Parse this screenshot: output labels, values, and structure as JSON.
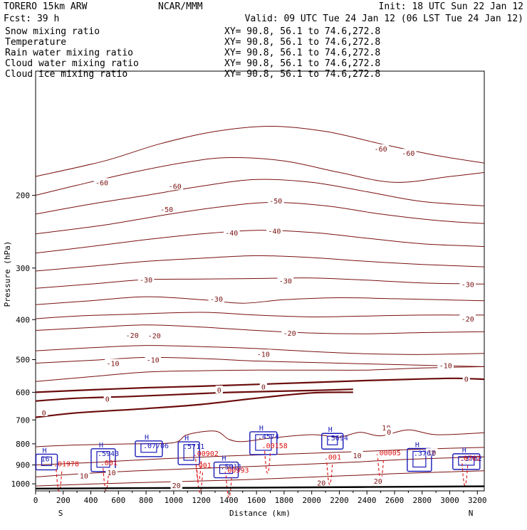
{
  "header": {
    "model": "TORERO  15km ARW",
    "org": "NCAR/MMM",
    "init": "Init: 18 UTC Sun 22 Jan 12",
    "fcst": "Fcst:   39 h",
    "valid": "Valid: 09 UTC Tue 24 Jan 12 (06 LST Tue 24 Jan 12)"
  },
  "fields": [
    {
      "label": "Snow mixing ratio",
      "xy": "XY=  90.8, 56.1 to  74.6,272.8",
      "color": "#000000"
    },
    {
      "label": "Temperature",
      "xy": "XY=  90.8, 56.1 to  74.6,272.8",
      "color": "#cc0000"
    },
    {
      "label": "Rain water mixing ratio",
      "xy": "XY=  90.8, 56.1 to  74.6,272.8",
      "color": "#cc0000"
    },
    {
      "label": "Cloud water mixing ratio",
      "xy": "XY=  90.8, 56.1 to  74.6,272.8",
      "color": "#1a1aa8"
    },
    {
      "label": "Cloud ice mixing ratio",
      "xy": "XY=  90.8, 56.1 to  74.6,272.8",
      "color": "#000000"
    }
  ],
  "colors": {
    "temperature": "#7a1010",
    "zero_isotherm": "#6b0c0c",
    "cloud_water": "#1a1ab8",
    "rain_water": "#dd1010",
    "text": "#000000",
    "terrain": "#000000"
  },
  "chart_data": {
    "type": "cross-section",
    "xlabel": "Distance (km)",
    "ylabel": "Pressure (hPa)",
    "xlim": [
      0,
      3250
    ],
    "ylim": [
      1040,
      100
    ],
    "y_scale": "log",
    "x_ticks": [
      0,
      200,
      400,
      600,
      800,
      1000,
      1200,
      1400,
      1600,
      1800,
      2000,
      2200,
      2400,
      2600,
      2800,
      3000,
      3200
    ],
    "y_ticks": [
      200,
      300,
      400,
      500,
      600,
      700,
      800,
      900,
      1000
    ],
    "endpoints": {
      "left": "S",
      "right": "N"
    },
    "isotherms": [
      {
        "value": -60,
        "points": [
          [
            0,
            200
          ],
          [
            300,
            189
          ],
          [
            700,
            176
          ],
          [
            1100,
            166
          ],
          [
            1400,
            162
          ],
          [
            1800,
            165
          ],
          [
            2200,
            176
          ],
          [
            2600,
            186
          ],
          [
            3000,
            180
          ],
          [
            3250,
            176
          ]
        ]
      },
      {
        "value": -60,
        "points": [
          [
            0,
            180
          ],
          [
            500,
            165
          ],
          [
            900,
            150
          ],
          [
            1300,
            140
          ],
          [
            1700,
            136
          ],
          [
            2100,
            140
          ],
          [
            2500,
            150
          ],
          [
            2900,
            160
          ],
          [
            3250,
            167
          ]
        ]
      },
      {
        "value": -50,
        "points": [
          [
            0,
            222
          ],
          [
            400,
            210
          ],
          [
            800,
            200
          ],
          [
            1200,
            190
          ],
          [
            1600,
            183
          ],
          [
            2000,
            186
          ],
          [
            2400,
            196
          ],
          [
            2800,
            207
          ],
          [
            3250,
            212
          ]
        ]
      },
      {
        "value": -50,
        "points": [
          [
            0,
            248
          ],
          [
            500,
            236
          ],
          [
            900,
            224
          ],
          [
            1300,
            214
          ],
          [
            1700,
            208
          ],
          [
            2100,
            212
          ],
          [
            2500,
            222
          ],
          [
            2900,
            230
          ],
          [
            3250,
            234
          ]
        ]
      },
      {
        "value": -40,
        "points": [
          [
            0,
            276
          ],
          [
            400,
            266
          ],
          [
            800,
            256
          ],
          [
            1200,
            248
          ],
          [
            1600,
            243
          ],
          [
            2000,
            246
          ],
          [
            2400,
            254
          ],
          [
            2800,
            262
          ],
          [
            3250,
            266
          ]
        ]
      },
      {
        "value": -40,
        "points": [
          [
            0,
            305
          ],
          [
            400,
            297
          ],
          [
            800,
            289
          ],
          [
            1200,
            284
          ],
          [
            1600,
            280
          ],
          [
            2000,
            283
          ],
          [
            2400,
            289
          ],
          [
            2800,
            294
          ],
          [
            3250,
            298
          ]
        ]
      },
      {
        "value": -30,
        "points": [
          [
            0,
            336
          ],
          [
            400,
            328
          ],
          [
            800,
            320
          ],
          [
            1200,
            319
          ],
          [
            1600,
            318
          ],
          [
            2000,
            317
          ],
          [
            2400,
            321
          ],
          [
            2800,
            326
          ],
          [
            3250,
            328
          ]
        ]
      },
      {
        "value": -30,
        "points": [
          [
            0,
            368
          ],
          [
            400,
            360
          ],
          [
            800,
            352
          ],
          [
            1200,
            358
          ],
          [
            1500,
            365
          ],
          [
            1800,
            358
          ],
          [
            2200,
            354
          ],
          [
            2600,
            356
          ],
          [
            3250,
            360
          ]
        ]
      },
      {
        "value": -20,
        "points": [
          [
            0,
            398
          ],
          [
            300,
            392
          ],
          [
            700,
            388
          ],
          [
            1200,
            384
          ],
          [
            1600,
            390
          ],
          [
            2000,
            394
          ],
          [
            2400,
            392
          ],
          [
            2800,
            390
          ],
          [
            3250,
            390
          ]
        ]
      },
      {
        "value": -20,
        "points": [
          [
            0,
            425
          ],
          [
            400,
            418
          ],
          [
            800,
            412
          ],
          [
            1200,
            417
          ],
          [
            1600,
            425
          ],
          [
            2000,
            431
          ],
          [
            2400,
            433
          ],
          [
            2800,
            430
          ],
          [
            3250,
            428
          ]
        ]
      },
      {
        "value": -10,
        "points": [
          [
            0,
            476
          ],
          [
            400,
            468
          ],
          [
            800,
            462
          ],
          [
            1200,
            465
          ],
          [
            1600,
            470
          ],
          [
            2000,
            478
          ],
          [
            2400,
            484
          ],
          [
            2800,
            486
          ],
          [
            3250,
            483
          ]
        ]
      },
      {
        "value": -10,
        "points": [
          [
            0,
            510
          ],
          [
            400,
            502
          ],
          [
            800,
            494
          ],
          [
            1200,
            497
          ],
          [
            1600,
            504
          ],
          [
            2000,
            508
          ],
          [
            2400,
            512
          ],
          [
            2800,
            516
          ],
          [
            3250,
            520
          ]
        ]
      },
      {
        "value": -10,
        "points": [
          [
            0,
            565
          ],
          [
            400,
            550
          ],
          [
            800,
            536
          ],
          [
            1200,
            532
          ],
          [
            1600,
            530
          ],
          [
            2000,
            530
          ],
          [
            2400,
            530
          ],
          [
            2800,
            524
          ],
          [
            3250,
            520
          ]
        ]
      },
      {
        "value": 0,
        "points": [
          [
            0,
            600
          ],
          [
            400,
            592
          ],
          [
            800,
            585
          ],
          [
            1200,
            580
          ],
          [
            1600,
            574
          ],
          [
            2000,
            568
          ],
          [
            2400,
            562
          ],
          [
            2800,
            557
          ],
          [
            3050,
            555
          ],
          [
            3250,
            558
          ]
        ]
      },
      {
        "value": 0,
        "points": [
          [
            0,
            630
          ],
          [
            300,
            620
          ],
          [
            700,
            614
          ],
          [
            1000,
            608
          ],
          [
            1300,
            602
          ],
          [
            1600,
            598
          ],
          [
            2000,
            594
          ],
          [
            2300,
            590
          ]
        ]
      },
      {
        "value": 0,
        "points": [
          [
            0,
            690
          ],
          [
            300,
            673
          ],
          [
            800,
            657
          ],
          [
            1200,
            642
          ],
          [
            1600,
            620
          ],
          [
            2000,
            602
          ],
          [
            2300,
            600
          ]
        ]
      },
      {
        "value": 10,
        "points": [
          [
            0,
            813
          ],
          [
            300,
            805
          ],
          [
            700,
            800
          ],
          [
            1000,
            795
          ],
          [
            1100,
            760
          ],
          [
            1300,
            745
          ],
          [
            1400,
            780
          ],
          [
            1500,
            790
          ],
          [
            1700,
            775
          ],
          [
            2000,
            760
          ],
          [
            2200,
            770
          ],
          [
            2350,
            750
          ],
          [
            2500,
            765
          ],
          [
            2700,
            740
          ],
          [
            2900,
            760
          ],
          [
            3250,
            752
          ]
        ]
      },
      {
        "value": 10,
        "points": [
          [
            0,
            900
          ],
          [
            400,
            888
          ],
          [
            900,
            870
          ],
          [
            1400,
            856
          ],
          [
            1900,
            845
          ],
          [
            2300,
            836
          ],
          [
            2700,
            826
          ],
          [
            3000,
            820
          ],
          [
            3250,
            816
          ]
        ]
      },
      {
        "value": 10,
        "points": [
          [
            0,
            962
          ],
          [
            400,
            942
          ],
          [
            900,
            925
          ],
          [
            1400,
            912
          ],
          [
            1900,
            898
          ],
          [
            2300,
            886
          ],
          [
            2700,
            872
          ],
          [
            3250,
            860
          ]
        ]
      },
      {
        "value": 20,
        "points": [
          [
            0,
            1012
          ],
          [
            400,
            1001
          ],
          [
            900,
            990
          ],
          [
            1400,
            980
          ],
          [
            1900,
            966
          ],
          [
            2300,
            954
          ],
          [
            2700,
            942
          ],
          [
            3250,
            930
          ]
        ]
      }
    ],
    "temperature_labels": [
      {
        "x": 480,
        "p": 186,
        "text": "-60"
      },
      {
        "x": 2500,
        "p": 154,
        "text": "-60"
      },
      {
        "x": 2700,
        "p": 158,
        "text": "-60"
      },
      {
        "x": 1010,
        "p": 190,
        "text": "-60"
      },
      {
        "x": 950,
        "p": 216,
        "text": "-50"
      },
      {
        "x": 1740,
        "p": 206,
        "text": "-50"
      },
      {
        "x": 1420,
        "p": 246,
        "text": "-40"
      },
      {
        "x": 1730,
        "p": 244,
        "text": "-40"
      },
      {
        "x": 800,
        "p": 320,
        "text": "-30"
      },
      {
        "x": 1310,
        "p": 356,
        "text": "-30"
      },
      {
        "x": 1810,
        "p": 322,
        "text": "-30"
      },
      {
        "x": 3130,
        "p": 328,
        "text": "-30"
      },
      {
        "x": 3130,
        "p": 398,
        "text": "-20"
      },
      {
        "x": 700,
        "p": 436,
        "text": "-20"
      },
      {
        "x": 860,
        "p": 437,
        "text": "-20"
      },
      {
        "x": 1840,
        "p": 431,
        "text": "-20"
      },
      {
        "x": 560,
        "p": 510,
        "text": "-10"
      },
      {
        "x": 850,
        "p": 500,
        "text": "-10"
      },
      {
        "x": 1650,
        "p": 484,
        "text": "-10"
      },
      {
        "x": 2970,
        "p": 516,
        "text": "-10"
      },
      {
        "x": 3120,
        "p": 557,
        "text": "0"
      },
      {
        "x": 1650,
        "p": 582,
        "text": "0"
      },
      {
        "x": 1330,
        "p": 592,
        "text": "0"
      },
      {
        "x": 520,
        "p": 622,
        "text": "0"
      },
      {
        "x": 60,
        "p": 672,
        "text": "0"
      },
      {
        "x": 2540,
        "p": 730,
        "text": "10"
      },
      {
        "x": 2560,
        "p": 748,
        "text": "0"
      },
      {
        "x": 2870,
        "p": 840,
        "text": "10"
      },
      {
        "x": 2330,
        "p": 852,
        "text": "10"
      },
      {
        "x": 350,
        "p": 955,
        "text": "10"
      },
      {
        "x": 550,
        "p": 938,
        "text": "10"
      },
      {
        "x": 1020,
        "p": 1008,
        "text": "20"
      },
      {
        "x": 2070,
        "p": 993,
        "text": "20"
      },
      {
        "x": 2480,
        "p": 983,
        "text": "20"
      }
    ],
    "cloud_water_maxima": [
      {
        "x": 80,
        "p": 868,
        "text": "16"
      },
      {
        "x": 490,
        "p": 842,
        "text": ".5943"
      },
      {
        "x": 820,
        "p": 806,
        "text": ".07706"
      },
      {
        "x": 1110,
        "p": 810,
        "text": ".5711"
      },
      {
        "x": 1380,
        "p": 907,
        "text": ".5911"
      },
      {
        "x": 1650,
        "p": 766,
        "text": ".4574"
      },
      {
        "x": 2150,
        "p": 773,
        "text": ".5694"
      },
      {
        "x": 2780,
        "p": 841,
        "text": ".3762"
      },
      {
        "x": 3120,
        "p": 866,
        "text": ".3762"
      }
    ],
    "rain_water_maxima": [
      {
        "x": 170,
        "p": 893,
        "text": ".01978"
      },
      {
        "x": 510,
        "p": 888,
        "text": ".001"
      },
      {
        "x": 1180,
        "p": 843,
        "text": ".00902"
      },
      {
        "x": 1190,
        "p": 899,
        "text": ".001"
      },
      {
        "x": 1400,
        "p": 925,
        "text": ".00993"
      },
      {
        "x": 1680,
        "p": 807,
        "text": ".00158"
      },
      {
        "x": 2130,
        "p": 860,
        "text": ".001"
      },
      {
        "x": 2500,
        "p": 839,
        "text": ".00005"
      },
      {
        "x": 3110,
        "p": 864,
        "text": ".0762"
      }
    ],
    "surface_pressure": [
      [
        0,
        1027
      ],
      [
        800,
        1024
      ],
      [
        1600,
        1021
      ],
      [
        2400,
        1018
      ],
      [
        3250,
        1014
      ]
    ]
  }
}
